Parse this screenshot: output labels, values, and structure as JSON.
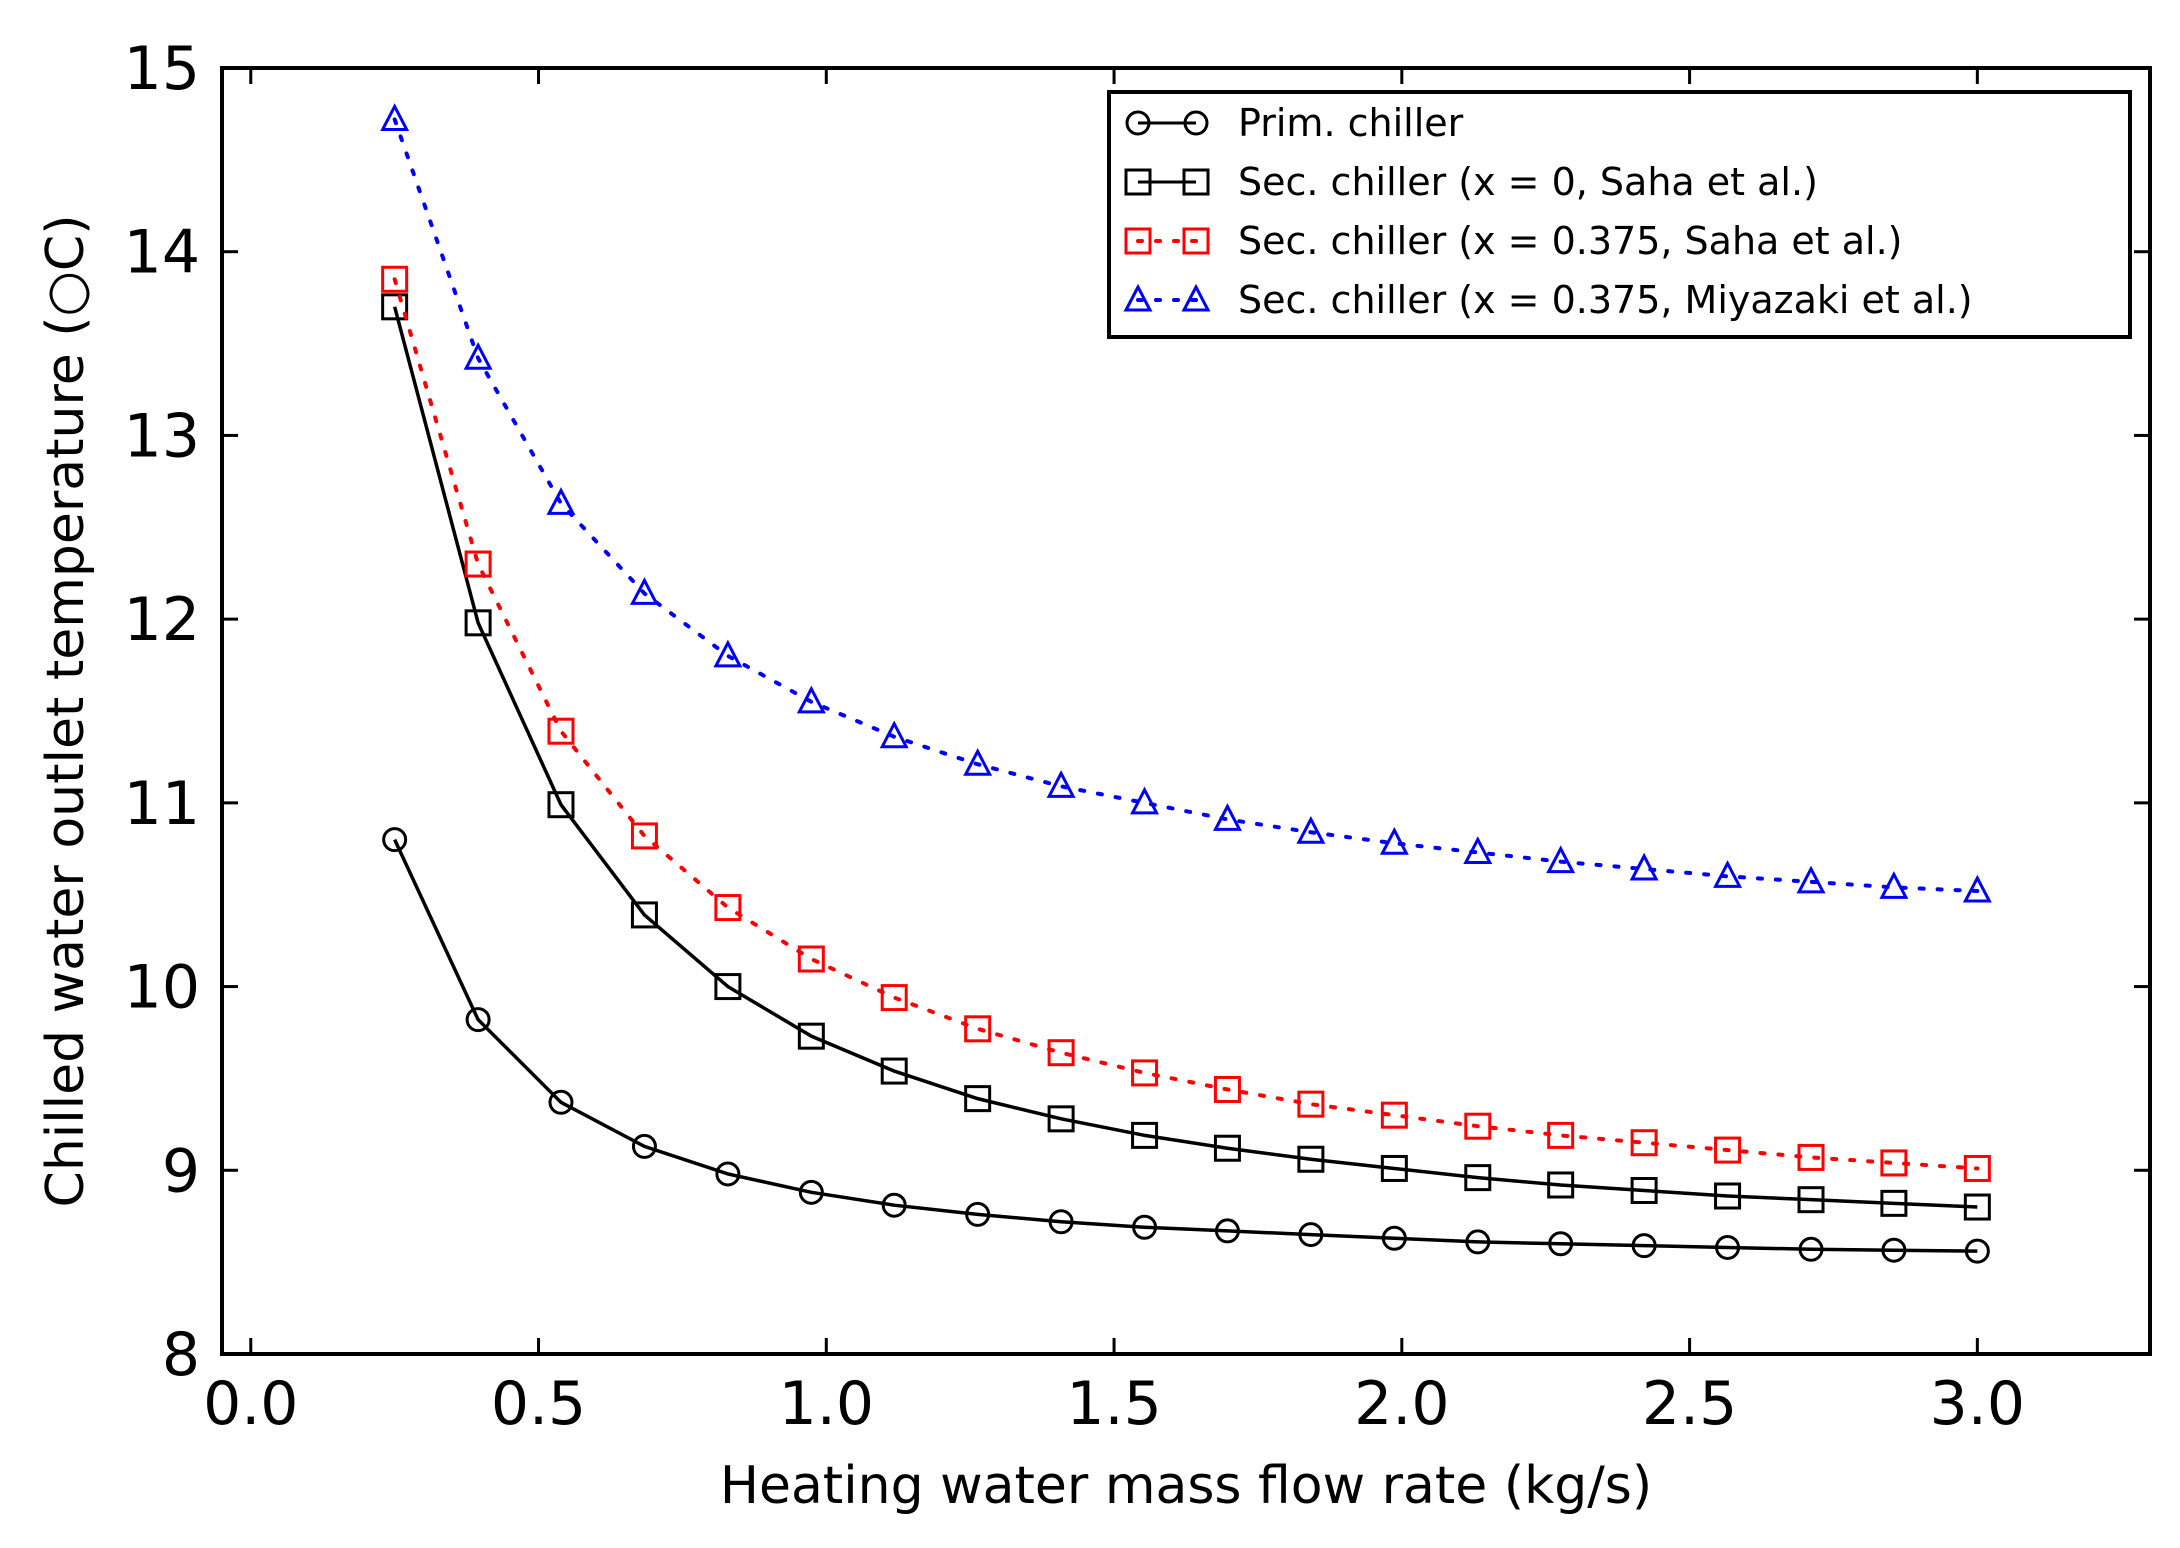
{
  "chart_data": {
    "type": "line",
    "title": "",
    "xlabel": "Heating water mass flow rate (kg/s)",
    "ylabel": "Chilled water outlet temperature (○C)",
    "xlim": [
      -0.05,
      3.3
    ],
    "ylim": [
      8,
      15
    ],
    "xticks": [
      0.0,
      0.5,
      1.0,
      1.5,
      2.0,
      2.5,
      3.0
    ],
    "xtick_labels": [
      "0.0",
      "0.5",
      "1.0",
      "1.5",
      "2.0",
      "2.5",
      "3.0"
    ],
    "yticks": [
      8,
      9,
      10,
      11,
      12,
      13,
      14,
      15
    ],
    "ytick_labels": [
      "8",
      "9",
      "10",
      "11",
      "12",
      "13",
      "14",
      "15"
    ],
    "grid": false,
    "legend_position": "top-right",
    "x": [
      0.25,
      0.395,
      0.539,
      0.684,
      0.829,
      0.974,
      1.118,
      1.263,
      1.408,
      1.553,
      1.697,
      1.842,
      1.987,
      2.132,
      2.276,
      2.421,
      2.566,
      2.711,
      2.855,
      3.0
    ],
    "series": [
      {
        "name": "Prim. chiller",
        "color": "#000000",
        "linestyle": "solid",
        "marker": "circle",
        "values": [
          10.8,
          9.82,
          9.37,
          9.13,
          8.98,
          8.88,
          8.81,
          8.76,
          8.72,
          8.69,
          8.67,
          8.65,
          8.63,
          8.61,
          8.6,
          8.59,
          8.58,
          8.57,
          8.565,
          8.56
        ]
      },
      {
        "name": "Sec. chiller (x = 0, Saha et al.)",
        "color": "#000000",
        "linestyle": "solid",
        "marker": "square",
        "values": [
          13.7,
          11.98,
          10.99,
          10.39,
          10.0,
          9.73,
          9.54,
          9.39,
          9.28,
          9.19,
          9.12,
          9.06,
          9.01,
          8.96,
          8.92,
          8.89,
          8.86,
          8.84,
          8.82,
          8.8
        ]
      },
      {
        "name": "Sec. chiller (x = 0.375, Saha et al.)",
        "color": "#ff0000",
        "linestyle": "dotted",
        "marker": "square",
        "values": [
          13.85,
          12.3,
          11.39,
          10.82,
          10.43,
          10.15,
          9.94,
          9.77,
          9.64,
          9.53,
          9.44,
          9.36,
          9.3,
          9.24,
          9.19,
          9.15,
          9.11,
          9.07,
          9.04,
          9.01
        ]
      },
      {
        "name": "Sec. chiller (x = 0.375, Miyazaki et al.)",
        "color": "#0000ff",
        "linestyle": "dotted",
        "marker": "triangle",
        "values": [
          14.72,
          13.42,
          12.63,
          12.14,
          11.8,
          11.55,
          11.36,
          11.21,
          11.09,
          11.0,
          10.91,
          10.84,
          10.78,
          10.73,
          10.68,
          10.64,
          10.6,
          10.57,
          10.54,
          10.52
        ]
      }
    ]
  }
}
